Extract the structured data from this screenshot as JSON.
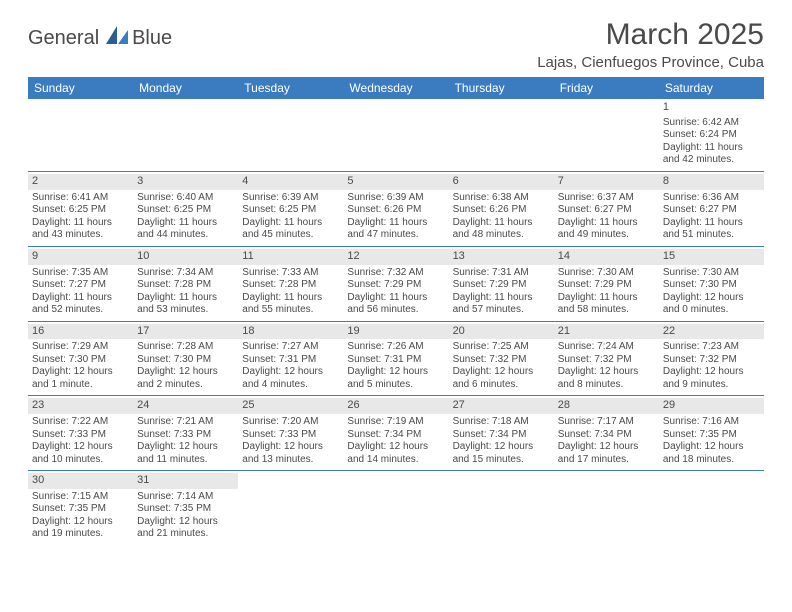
{
  "logo": {
    "general": "General",
    "blue": "Blue"
  },
  "title": "March 2025",
  "location": "Lajas, Cienfuegos Province, Cuba",
  "colors": {
    "header_bg": "#3b7bbf",
    "header_text": "#ffffff",
    "daynum_bg": "#e8e8e8",
    "text": "#4a4a4a",
    "divider": "#3b7bbf",
    "page_bg": "#ffffff"
  },
  "weekdays": [
    "Sunday",
    "Monday",
    "Tuesday",
    "Wednesday",
    "Thursday",
    "Friday",
    "Saturday"
  ],
  "weeks": [
    [
      null,
      null,
      null,
      null,
      null,
      null,
      {
        "n": "1",
        "sunrise": "Sunrise: 6:42 AM",
        "sunset": "Sunset: 6:24 PM",
        "daylight": "Daylight: 11 hours and 42 minutes."
      }
    ],
    [
      {
        "n": "2",
        "sunrise": "Sunrise: 6:41 AM",
        "sunset": "Sunset: 6:25 PM",
        "daylight": "Daylight: 11 hours and 43 minutes."
      },
      {
        "n": "3",
        "sunrise": "Sunrise: 6:40 AM",
        "sunset": "Sunset: 6:25 PM",
        "daylight": "Daylight: 11 hours and 44 minutes."
      },
      {
        "n": "4",
        "sunrise": "Sunrise: 6:39 AM",
        "sunset": "Sunset: 6:25 PM",
        "daylight": "Daylight: 11 hours and 45 minutes."
      },
      {
        "n": "5",
        "sunrise": "Sunrise: 6:39 AM",
        "sunset": "Sunset: 6:26 PM",
        "daylight": "Daylight: 11 hours and 47 minutes."
      },
      {
        "n": "6",
        "sunrise": "Sunrise: 6:38 AM",
        "sunset": "Sunset: 6:26 PM",
        "daylight": "Daylight: 11 hours and 48 minutes."
      },
      {
        "n": "7",
        "sunrise": "Sunrise: 6:37 AM",
        "sunset": "Sunset: 6:27 PM",
        "daylight": "Daylight: 11 hours and 49 minutes."
      },
      {
        "n": "8",
        "sunrise": "Sunrise: 6:36 AM",
        "sunset": "Sunset: 6:27 PM",
        "daylight": "Daylight: 11 hours and 51 minutes."
      }
    ],
    [
      {
        "n": "9",
        "sunrise": "Sunrise: 7:35 AM",
        "sunset": "Sunset: 7:27 PM",
        "daylight": "Daylight: 11 hours and 52 minutes."
      },
      {
        "n": "10",
        "sunrise": "Sunrise: 7:34 AM",
        "sunset": "Sunset: 7:28 PM",
        "daylight": "Daylight: 11 hours and 53 minutes."
      },
      {
        "n": "11",
        "sunrise": "Sunrise: 7:33 AM",
        "sunset": "Sunset: 7:28 PM",
        "daylight": "Daylight: 11 hours and 55 minutes."
      },
      {
        "n": "12",
        "sunrise": "Sunrise: 7:32 AM",
        "sunset": "Sunset: 7:29 PM",
        "daylight": "Daylight: 11 hours and 56 minutes."
      },
      {
        "n": "13",
        "sunrise": "Sunrise: 7:31 AM",
        "sunset": "Sunset: 7:29 PM",
        "daylight": "Daylight: 11 hours and 57 minutes."
      },
      {
        "n": "14",
        "sunrise": "Sunrise: 7:30 AM",
        "sunset": "Sunset: 7:29 PM",
        "daylight": "Daylight: 11 hours and 58 minutes."
      },
      {
        "n": "15",
        "sunrise": "Sunrise: 7:30 AM",
        "sunset": "Sunset: 7:30 PM",
        "daylight": "Daylight: 12 hours and 0 minutes."
      }
    ],
    [
      {
        "n": "16",
        "sunrise": "Sunrise: 7:29 AM",
        "sunset": "Sunset: 7:30 PM",
        "daylight": "Daylight: 12 hours and 1 minute."
      },
      {
        "n": "17",
        "sunrise": "Sunrise: 7:28 AM",
        "sunset": "Sunset: 7:30 PM",
        "daylight": "Daylight: 12 hours and 2 minutes."
      },
      {
        "n": "18",
        "sunrise": "Sunrise: 7:27 AM",
        "sunset": "Sunset: 7:31 PM",
        "daylight": "Daylight: 12 hours and 4 minutes."
      },
      {
        "n": "19",
        "sunrise": "Sunrise: 7:26 AM",
        "sunset": "Sunset: 7:31 PM",
        "daylight": "Daylight: 12 hours and 5 minutes."
      },
      {
        "n": "20",
        "sunrise": "Sunrise: 7:25 AM",
        "sunset": "Sunset: 7:32 PM",
        "daylight": "Daylight: 12 hours and 6 minutes."
      },
      {
        "n": "21",
        "sunrise": "Sunrise: 7:24 AM",
        "sunset": "Sunset: 7:32 PM",
        "daylight": "Daylight: 12 hours and 8 minutes."
      },
      {
        "n": "22",
        "sunrise": "Sunrise: 7:23 AM",
        "sunset": "Sunset: 7:32 PM",
        "daylight": "Daylight: 12 hours and 9 minutes."
      }
    ],
    [
      {
        "n": "23",
        "sunrise": "Sunrise: 7:22 AM",
        "sunset": "Sunset: 7:33 PM",
        "daylight": "Daylight: 12 hours and 10 minutes."
      },
      {
        "n": "24",
        "sunrise": "Sunrise: 7:21 AM",
        "sunset": "Sunset: 7:33 PM",
        "daylight": "Daylight: 12 hours and 11 minutes."
      },
      {
        "n": "25",
        "sunrise": "Sunrise: 7:20 AM",
        "sunset": "Sunset: 7:33 PM",
        "daylight": "Daylight: 12 hours and 13 minutes."
      },
      {
        "n": "26",
        "sunrise": "Sunrise: 7:19 AM",
        "sunset": "Sunset: 7:34 PM",
        "daylight": "Daylight: 12 hours and 14 minutes."
      },
      {
        "n": "27",
        "sunrise": "Sunrise: 7:18 AM",
        "sunset": "Sunset: 7:34 PM",
        "daylight": "Daylight: 12 hours and 15 minutes."
      },
      {
        "n": "28",
        "sunrise": "Sunrise: 7:17 AM",
        "sunset": "Sunset: 7:34 PM",
        "daylight": "Daylight: 12 hours and 17 minutes."
      },
      {
        "n": "29",
        "sunrise": "Sunrise: 7:16 AM",
        "sunset": "Sunset: 7:35 PM",
        "daylight": "Daylight: 12 hours and 18 minutes."
      }
    ],
    [
      {
        "n": "30",
        "sunrise": "Sunrise: 7:15 AM",
        "sunset": "Sunset: 7:35 PM",
        "daylight": "Daylight: 12 hours and 19 minutes."
      },
      {
        "n": "31",
        "sunrise": "Sunrise: 7:14 AM",
        "sunset": "Sunset: 7:35 PM",
        "daylight": "Daylight: 12 hours and 21 minutes."
      },
      null,
      null,
      null,
      null,
      null
    ]
  ]
}
